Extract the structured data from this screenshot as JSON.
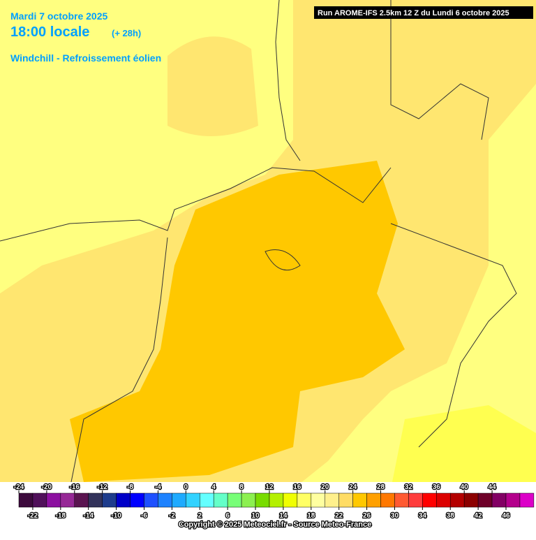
{
  "header": {
    "date": "Mardi 7 octobre 2025",
    "time": "18:00 locale",
    "lead": "(+ 28h)",
    "parameter": "Windchill - Refroissement éolien",
    "run": "Run AROME-IFS 2.5km 12 Z du Lundi 6 octobre 2025"
  },
  "legend": {
    "ticks": [
      -24,
      -22,
      -20,
      -18,
      -16,
      -14,
      -12,
      -10,
      -8,
      -6,
      -4,
      -2,
      0,
      2,
      4,
      6,
      8,
      10,
      12,
      14,
      16,
      18,
      20,
      22,
      24,
      26,
      28,
      30,
      32,
      34,
      36,
      38,
      40,
      42,
      44,
      46
    ],
    "colors": [
      "#3c0a3c",
      "#50105a",
      "#8c10a0",
      "#962896",
      "#5a1450",
      "#32325a",
      "#1e3c8c",
      "#0000c8",
      "#0000ff",
      "#1e50ff",
      "#1e82ff",
      "#1eaaff",
      "#32d2ff",
      "#64ffff",
      "#64ffc8",
      "#78ff78",
      "#8cf050",
      "#78dc00",
      "#b4f000",
      "#f0ff00",
      "#ffff64",
      "#ffffa0",
      "#fff08c",
      "#ffdc64",
      "#ffc800",
      "#ffa000",
      "#ff7800",
      "#ff5a32",
      "#ff3c3c",
      "#ff0000",
      "#dc0000",
      "#b40000",
      "#8c0000",
      "#6e0028",
      "#820064",
      "#b4008c",
      "#dc00c8",
      "#f028f0",
      "#ff78ff"
    ]
  },
  "footer": {
    "copyright": "Copyright © 2025 Meteociel.fr - Source Meteo-France"
  }
}
